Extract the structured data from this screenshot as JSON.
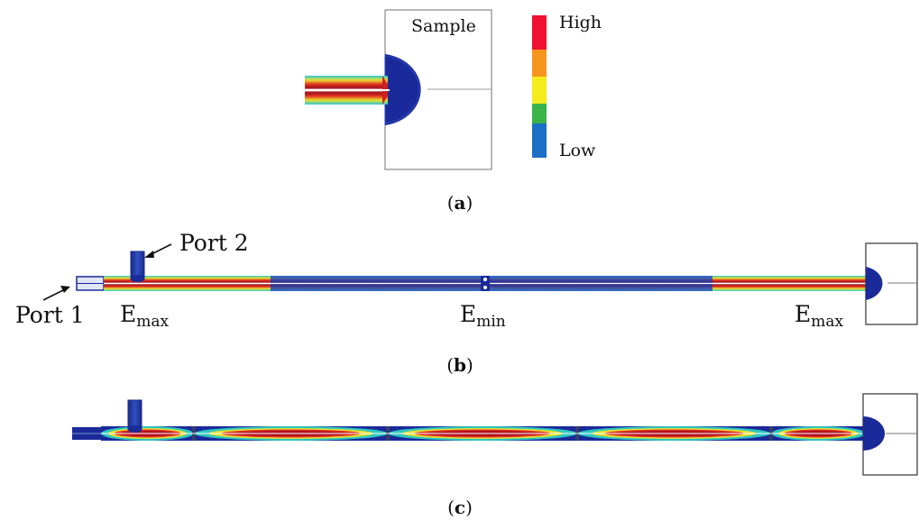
{
  "panel_a": {
    "sample_label": "Sample",
    "legend": {
      "high_label": "High",
      "low_label": "Low",
      "colors": [
        "#f01030",
        "#f7941d",
        "#f4ec1c",
        "#3bb44a",
        "#1b6fc4"
      ]
    },
    "caption_letter": "a"
  },
  "panel_b": {
    "port2_label": "Port 2",
    "port1_label": "Port 1",
    "field_labels": [
      {
        "main": "E",
        "sub": "max"
      },
      {
        "main": "E",
        "sub": "min"
      },
      {
        "main": "E",
        "sub": "max"
      }
    ],
    "caption_letter": "b"
  },
  "panel_c": {
    "caption_letter": "c"
  },
  "colors": {
    "field_high": "#b01020",
    "field_low": "#1a2a9a",
    "field_mid": "#2ec8c0"
  }
}
